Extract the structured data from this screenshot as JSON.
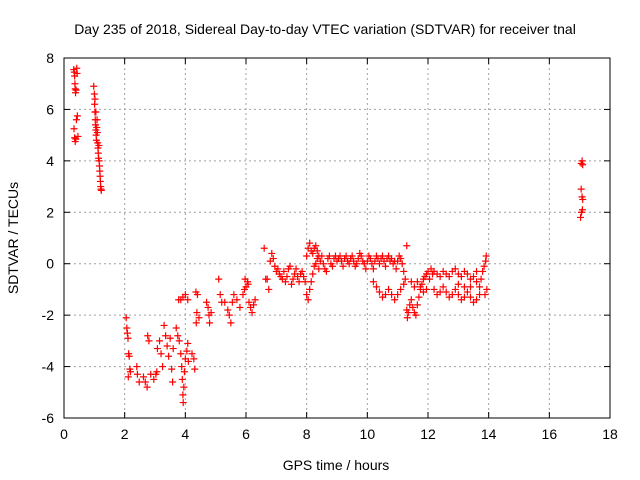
{
  "chart_data": {
    "type": "scatter",
    "title": "Day 235 of 2018, Sidereal Day-to-day VTEC variation (SDTVAR) for receiver tnal",
    "xlabel": "GPS time / hours",
    "ylabel": "SDTVAR / TECUs",
    "xlim": [
      0,
      18
    ],
    "ylim": [
      -6,
      8
    ],
    "xticks": [
      "0",
      "2",
      "4",
      "6",
      "8",
      "10",
      "12",
      "14",
      "16",
      "18"
    ],
    "yticks": [
      "-6",
      "-4",
      "-2",
      "0",
      "2",
      "4",
      "6",
      "8"
    ],
    "grid": true,
    "marker": "+",
    "color": "#ff0000",
    "series": [
      {
        "name": "tnal",
        "points": [
          [
            0.32,
            7.55
          ],
          [
            0.34,
            7.45
          ],
          [
            0.35,
            7.3
          ],
          [
            0.36,
            7.0
          ],
          [
            0.37,
            6.8
          ],
          [
            0.38,
            6.65
          ],
          [
            0.4,
            6.75
          ],
          [
            0.42,
            7.6
          ],
          [
            0.43,
            7.4
          ],
          [
            0.33,
            5.25
          ],
          [
            0.35,
            4.9
          ],
          [
            0.37,
            4.75
          ],
          [
            0.39,
            4.85
          ],
          [
            0.41,
            5.6
          ],
          [
            0.44,
            5.75
          ],
          [
            0.46,
            4.95
          ],
          [
            0.98,
            6.9
          ],
          [
            1.0,
            6.6
          ],
          [
            1.01,
            6.2
          ],
          [
            1.02,
            5.9
          ],
          [
            1.03,
            5.6
          ],
          [
            1.04,
            5.4
          ],
          [
            1.05,
            5.2
          ],
          [
            1.06,
            5.0
          ],
          [
            1.07,
            4.8
          ],
          [
            1.08,
            5.3
          ],
          [
            1.09,
            5.6
          ],
          [
            1.1,
            5.1
          ],
          [
            1.11,
            4.7
          ],
          [
            1.12,
            4.5
          ],
          [
            1.13,
            4.3
          ],
          [
            1.14,
            4.1
          ],
          [
            1.15,
            4.6
          ],
          [
            1.16,
            4.0
          ],
          [
            1.17,
            3.8
          ],
          [
            1.18,
            3.6
          ],
          [
            1.19,
            3.4
          ],
          [
            1.2,
            3.2
          ],
          [
            1.21,
            3.0
          ],
          [
            1.22,
            2.9
          ],
          [
            1.23,
            2.85
          ],
          [
            1.05,
            5.9
          ],
          [
            1.02,
            6.4
          ],
          [
            2.05,
            -2.1
          ],
          [
            2.07,
            -2.5
          ],
          [
            2.09,
            -2.7
          ],
          [
            2.11,
            -2.9
          ],
          [
            2.13,
            -3.5
          ],
          [
            2.15,
            -3.6
          ],
          [
            2.17,
            -4.1
          ],
          [
            2.19,
            -4.2
          ],
          [
            2.12,
            -4.4
          ],
          [
            2.4,
            -4.0
          ],
          [
            2.42,
            -4.3
          ],
          [
            2.48,
            -4.6
          ],
          [
            2.62,
            -4.4
          ],
          [
            2.68,
            -4.6
          ],
          [
            2.74,
            -4.8
          ],
          [
            2.76,
            -2.8
          ],
          [
            2.8,
            -3.0
          ],
          [
            2.86,
            -4.3
          ],
          [
            2.96,
            -4.5
          ],
          [
            3.03,
            -4.3
          ],
          [
            3.06,
            -4.2
          ],
          [
            3.08,
            -3.3
          ],
          [
            3.15,
            -3.0
          ],
          [
            3.2,
            -3.5
          ],
          [
            3.25,
            -4.0
          ],
          [
            3.3,
            -2.4
          ],
          [
            3.35,
            -2.8
          ],
          [
            3.4,
            -3.2
          ],
          [
            3.45,
            -3.6
          ],
          [
            3.5,
            -2.9
          ],
          [
            3.55,
            -4.1
          ],
          [
            3.58,
            -4.6
          ],
          [
            3.6,
            -3.3
          ],
          [
            3.7,
            -2.5
          ],
          [
            3.75,
            -2.8
          ],
          [
            3.8,
            -3.0
          ],
          [
            3.85,
            -3.5
          ],
          [
            3.88,
            -4.0
          ],
          [
            3.9,
            -4.5
          ],
          [
            3.92,
            -5.1
          ],
          [
            3.93,
            -5.4
          ],
          [
            3.95,
            -4.8
          ],
          [
            3.97,
            -4.2
          ],
          [
            4.0,
            -3.7
          ],
          [
            4.05,
            -3.4
          ],
          [
            4.08,
            -3.1
          ],
          [
            4.1,
            -3.8
          ],
          [
            3.78,
            -1.4
          ],
          [
            3.85,
            -1.4
          ],
          [
            3.92,
            -1.3
          ],
          [
            4.0,
            -1.2
          ],
          [
            4.08,
            -1.4
          ],
          [
            4.35,
            -1.1
          ],
          [
            4.4,
            -1.2
          ],
          [
            4.38,
            -1.9
          ],
          [
            4.45,
            -2.1
          ],
          [
            4.36,
            -2.3
          ],
          [
            4.22,
            -3.5
          ],
          [
            4.28,
            -3.7
          ],
          [
            4.31,
            -4.1
          ],
          [
            4.7,
            -1.5
          ],
          [
            4.75,
            -1.7
          ],
          [
            4.78,
            -2.0
          ],
          [
            4.8,
            -2.3
          ],
          [
            4.85,
            -1.9
          ],
          [
            5.1,
            -0.6
          ],
          [
            5.15,
            -1.2
          ],
          [
            5.2,
            -1.5
          ],
          [
            5.3,
            -1.5
          ],
          [
            5.4,
            -1.8
          ],
          [
            5.45,
            -2.0
          ],
          [
            5.5,
            -2.3
          ],
          [
            5.55,
            -1.5
          ],
          [
            5.6,
            -1.2
          ],
          [
            5.7,
            -1.4
          ],
          [
            5.8,
            -1.7
          ],
          [
            5.9,
            -1.2
          ],
          [
            5.95,
            -1.0
          ],
          [
            6.0,
            -0.9
          ],
          [
            6.05,
            -0.7
          ],
          [
            6.1,
            -1.5
          ],
          [
            6.15,
            -1.7
          ],
          [
            6.2,
            -1.9
          ],
          [
            6.25,
            -1.6
          ],
          [
            6.3,
            -1.4
          ],
          [
            5.97,
            -0.6
          ],
          [
            6.07,
            -0.8
          ],
          [
            6.6,
            0.6
          ],
          [
            6.65,
            -0.6
          ],
          [
            6.7,
            -0.6
          ],
          [
            6.75,
            -1.0
          ],
          [
            6.8,
            0.1
          ],
          [
            6.85,
            0.4
          ],
          [
            6.9,
            0.2
          ],
          [
            6.95,
            -0.1
          ],
          [
            7.0,
            -0.3
          ],
          [
            7.05,
            -0.2
          ],
          [
            7.1,
            -0.4
          ],
          [
            7.15,
            -0.5
          ],
          [
            7.2,
            -0.6
          ],
          [
            7.25,
            -0.3
          ],
          [
            7.3,
            -0.7
          ],
          [
            7.35,
            -0.5
          ],
          [
            7.4,
            -0.2
          ],
          [
            7.45,
            -0.1
          ],
          [
            7.5,
            -0.8
          ],
          [
            7.55,
            -0.6
          ],
          [
            7.6,
            -0.4
          ],
          [
            7.65,
            -0.2
          ],
          [
            7.7,
            -0.5
          ],
          [
            7.75,
            -0.7
          ],
          [
            7.8,
            -0.4
          ],
          [
            7.85,
            -0.3
          ],
          [
            7.9,
            -0.5
          ],
          [
            7.95,
            -0.7
          ],
          [
            8.0,
            0.3
          ],
          [
            8.05,
            0.6
          ],
          [
            8.1,
            0.8
          ],
          [
            8.15,
            0.5
          ],
          [
            8.2,
            0.4
          ],
          [
            8.25,
            0.6
          ],
          [
            8.3,
            0.7
          ],
          [
            8.35,
            0.5
          ],
          [
            8.4,
            0.3
          ],
          [
            8.0,
            -1.2
          ],
          [
            8.05,
            -1.4
          ],
          [
            8.1,
            -1.0
          ],
          [
            8.15,
            -0.7
          ],
          [
            8.2,
            -0.4
          ],
          [
            8.25,
            -0.1
          ],
          [
            8.3,
            0.0
          ],
          [
            8.35,
            0.2
          ],
          [
            8.4,
            -0.2
          ],
          [
            8.45,
            0.1
          ],
          [
            8.5,
            0.3
          ],
          [
            8.55,
            0.0
          ],
          [
            8.6,
            -0.2
          ],
          [
            8.65,
            -0.3
          ],
          [
            8.7,
            0.2
          ],
          [
            8.75,
            0.3
          ],
          [
            8.8,
            0.0
          ],
          [
            8.85,
            -0.1
          ],
          [
            8.9,
            0.2
          ],
          [
            8.95,
            0.3
          ],
          [
            9.0,
            0.1
          ],
          [
            9.05,
            0.2
          ],
          [
            9.1,
            0.3
          ],
          [
            9.15,
            0.1
          ],
          [
            9.2,
            -0.1
          ],
          [
            9.25,
            0.2
          ],
          [
            9.3,
            0.3
          ],
          [
            9.35,
            0.1
          ],
          [
            9.4,
            0.0
          ],
          [
            9.45,
            0.2
          ],
          [
            9.5,
            0.3
          ],
          [
            9.55,
            0.1
          ],
          [
            9.6,
            -0.1
          ],
          [
            9.65,
            0.0
          ],
          [
            9.7,
            0.2
          ],
          [
            9.75,
            0.4
          ],
          [
            9.8,
            0.3
          ],
          [
            9.85,
            0.1
          ],
          [
            9.9,
            0.0
          ],
          [
            9.95,
            -0.2
          ],
          [
            10.0,
            0.1
          ],
          [
            10.05,
            0.3
          ],
          [
            10.1,
            0.2
          ],
          [
            10.15,
            0.0
          ],
          [
            10.2,
            -0.2
          ],
          [
            10.25,
            0.1
          ],
          [
            10.3,
            0.3
          ],
          [
            10.35,
            0.2
          ],
          [
            10.4,
            0.0
          ],
          [
            10.45,
            0.2
          ],
          [
            10.5,
            0.3
          ],
          [
            10.55,
            0.1
          ],
          [
            10.6,
            -0.1
          ],
          [
            10.65,
            0.2
          ],
          [
            10.7,
            0.3
          ],
          [
            10.75,
            0.1
          ],
          [
            10.8,
            0.2
          ],
          [
            10.85,
            0.0
          ],
          [
            10.9,
            0.1
          ],
          [
            10.95,
            -0.2
          ],
          [
            11.0,
            0.1
          ],
          [
            11.05,
            0.3
          ],
          [
            11.1,
            0.2
          ],
          [
            11.15,
            0.0
          ],
          [
            11.2,
            -0.3
          ],
          [
            11.25,
            -0.6
          ],
          [
            11.3,
            0.7
          ],
          [
            10.2,
            -0.7
          ],
          [
            10.3,
            -0.9
          ],
          [
            10.4,
            -1.1
          ],
          [
            10.5,
            -1.3
          ],
          [
            10.6,
            -1.2
          ],
          [
            10.7,
            -1.0
          ],
          [
            10.8,
            -1.2
          ],
          [
            10.9,
            -1.4
          ],
          [
            11.0,
            -1.2
          ],
          [
            11.1,
            -1.0
          ],
          [
            11.2,
            -0.8
          ],
          [
            11.3,
            -1.8
          ],
          [
            11.32,
            -2.1
          ],
          [
            11.35,
            -1.9
          ],
          [
            11.4,
            -1.6
          ],
          [
            11.45,
            -1.4
          ],
          [
            11.5,
            -1.7
          ],
          [
            11.55,
            -1.9
          ],
          [
            11.6,
            -2.0
          ],
          [
            11.65,
            -1.6
          ],
          [
            11.7,
            -1.3
          ],
          [
            11.75,
            -1.0
          ],
          [
            11.8,
            -0.8
          ],
          [
            11.85,
            -0.6
          ],
          [
            11.9,
            -0.5
          ],
          [
            11.95,
            -0.4
          ],
          [
            12.0,
            -0.3
          ],
          [
            11.45,
            -0.7
          ],
          [
            11.55,
            -0.9
          ],
          [
            11.65,
            -0.7
          ],
          [
            11.75,
            -0.9
          ],
          [
            11.85,
            -1.1
          ],
          [
            11.95,
            -1.0
          ],
          [
            12.05,
            -0.6
          ],
          [
            12.15,
            -0.4
          ],
          [
            12.1,
            -0.2
          ],
          [
            12.2,
            -0.3
          ],
          [
            12.3,
            -0.4
          ],
          [
            12.4,
            -0.5
          ],
          [
            12.5,
            -0.3
          ],
          [
            12.6,
            -0.4
          ],
          [
            12.7,
            -0.5
          ],
          [
            12.8,
            -0.3
          ],
          [
            12.9,
            -0.2
          ],
          [
            13.0,
            -0.4
          ],
          [
            13.1,
            -0.5
          ],
          [
            13.2,
            -0.3
          ],
          [
            13.3,
            -0.4
          ],
          [
            13.4,
            -0.6
          ],
          [
            13.5,
            -0.5
          ],
          [
            13.6,
            -0.3
          ],
          [
            12.2,
            -1.0
          ],
          [
            12.3,
            -1.2
          ],
          [
            12.4,
            -1.1
          ],
          [
            12.5,
            -0.9
          ],
          [
            12.6,
            -1.1
          ],
          [
            12.7,
            -1.3
          ],
          [
            12.8,
            -1.2
          ],
          [
            12.9,
            -1.0
          ],
          [
            13.0,
            -1.2
          ],
          [
            13.1,
            -1.4
          ],
          [
            13.2,
            -1.3
          ],
          [
            13.3,
            -1.1
          ],
          [
            13.4,
            -1.3
          ],
          [
            13.5,
            -1.5
          ],
          [
            13.6,
            -1.4
          ],
          [
            13.7,
            -1.2
          ],
          [
            13.0,
            -0.8
          ],
          [
            13.2,
            -0.9
          ],
          [
            13.4,
            -0.9
          ],
          [
            13.6,
            -0.7
          ],
          [
            13.7,
            -0.9
          ],
          [
            13.75,
            -0.6
          ],
          [
            13.8,
            -0.3
          ],
          [
            13.85,
            -0.1
          ],
          [
            13.9,
            0.1
          ],
          [
            13.92,
            0.3
          ],
          [
            13.88,
            -1.2
          ],
          [
            13.94,
            -1.0
          ],
          [
            17.05,
            3.9
          ],
          [
            17.08,
            4.0
          ],
          [
            17.1,
            3.85
          ],
          [
            17.05,
            2.9
          ],
          [
            17.08,
            2.6
          ],
          [
            17.1,
            2.5
          ],
          [
            17.06,
            2.0
          ],
          [
            17.03,
            1.8
          ],
          [
            17.09,
            2.1
          ]
        ]
      }
    ]
  }
}
